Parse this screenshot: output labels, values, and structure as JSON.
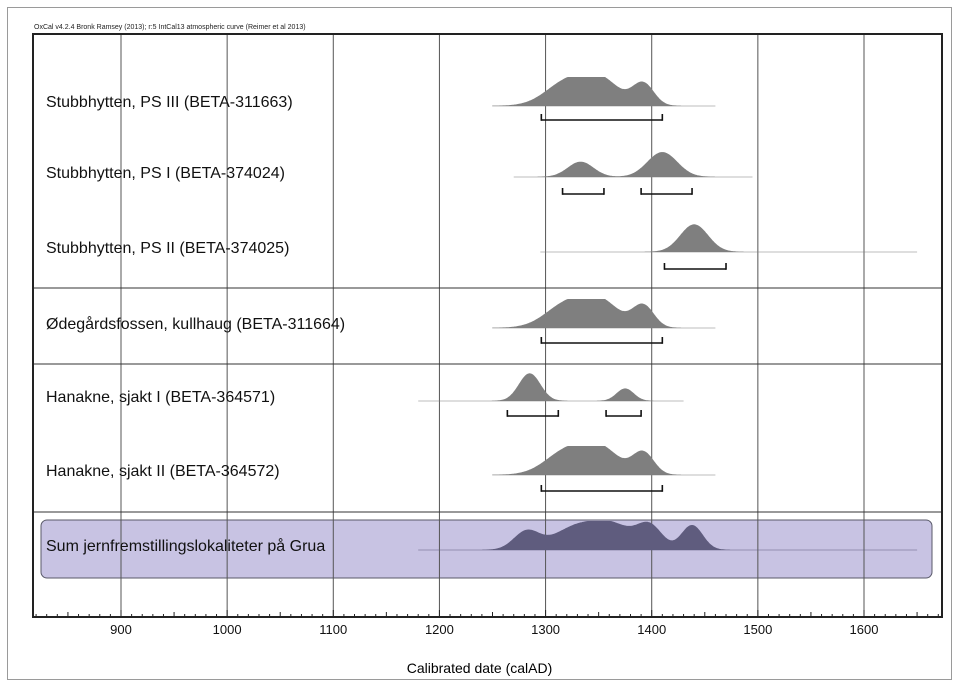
{
  "header_note": "OxCal v4.2.4 Bronk Ramsey (2013); r:5 IntCal13 atmospheric curve (Reimer et al 2013)",
  "chart_data": {
    "type": "area",
    "xlabel": "Calibrated date (calAD)",
    "xlim": [
      820,
      1675
    ],
    "ticks": [
      900,
      1000,
      1100,
      1200,
      1300,
      1400,
      1500,
      1600
    ],
    "grid": true,
    "colors": {
      "distribution": "#7f7f7f",
      "sum_fill": "#c8c3e3",
      "sum_distribution": "#5f5c7e",
      "grid": "#555555"
    },
    "rows": [
      {
        "label": "Stubbhytten, PS III (BETA-311663)",
        "range": [
          1250,
          1460
        ],
        "peaks": [
          [
            1320,
            20,
            0.85
          ],
          [
            1352,
            18,
            0.9
          ],
          [
            1392,
            10,
            0.8
          ]
        ],
        "hpd": [
          [
            1296,
            1410
          ]
        ]
      },
      {
        "label": "Stubbhytten, PS I (BETA-374024)",
        "range": [
          1270,
          1495
        ],
        "peaks": [
          [
            1333,
            12,
            0.55
          ],
          [
            1410,
            14,
            0.9
          ]
        ],
        "hpd": [
          [
            1316,
            1355
          ],
          [
            1390,
            1438
          ]
        ]
      },
      {
        "label": "Stubbhytten, PS II (BETA-374025)",
        "range": [
          1295,
          1650
        ],
        "peaks": [
          [
            1440,
            13,
            1.0
          ]
        ],
        "hpd": [
          [
            1412,
            1470
          ]
        ]
      },
      {
        "label": "Ødegårdsfossen, kullhaug (BETA-311664)",
        "range": [
          1250,
          1460
        ],
        "peaks": [
          [
            1320,
            20,
            0.85
          ],
          [
            1352,
            18,
            0.9
          ],
          [
            1392,
            10,
            0.8
          ]
        ],
        "hpd": [
          [
            1296,
            1410
          ]
        ]
      },
      {
        "label": "Hanakne, sjakt I (BETA-364571)",
        "range": [
          1180,
          1430
        ],
        "peaks": [
          [
            1285,
            10,
            1.0
          ],
          [
            1375,
            8,
            0.45
          ]
        ],
        "hpd": [
          [
            1264,
            1312
          ],
          [
            1357,
            1390
          ]
        ]
      },
      {
        "label": "Hanakne, sjakt II (BETA-364572)",
        "range": [
          1250,
          1460
        ],
        "peaks": [
          [
            1320,
            20,
            0.85
          ],
          [
            1352,
            18,
            0.9
          ],
          [
            1392,
            10,
            0.8
          ]
        ],
        "hpd": [
          [
            1296,
            1410
          ]
        ]
      },
      {
        "label": "Sum jernfremstillingslokaliteter på Grua",
        "range": [
          1180,
          1650
        ],
        "peaks": [
          [
            1282,
            12,
            0.65
          ],
          [
            1330,
            22,
            0.85
          ],
          [
            1365,
            18,
            0.75
          ],
          [
            1398,
            12,
            0.85
          ],
          [
            1438,
            10,
            0.9
          ]
        ],
        "hpd": [],
        "highlight": true
      }
    ],
    "groups": [
      [
        0,
        1,
        2
      ],
      [
        3
      ],
      [
        4,
        5
      ],
      [
        6
      ]
    ]
  }
}
